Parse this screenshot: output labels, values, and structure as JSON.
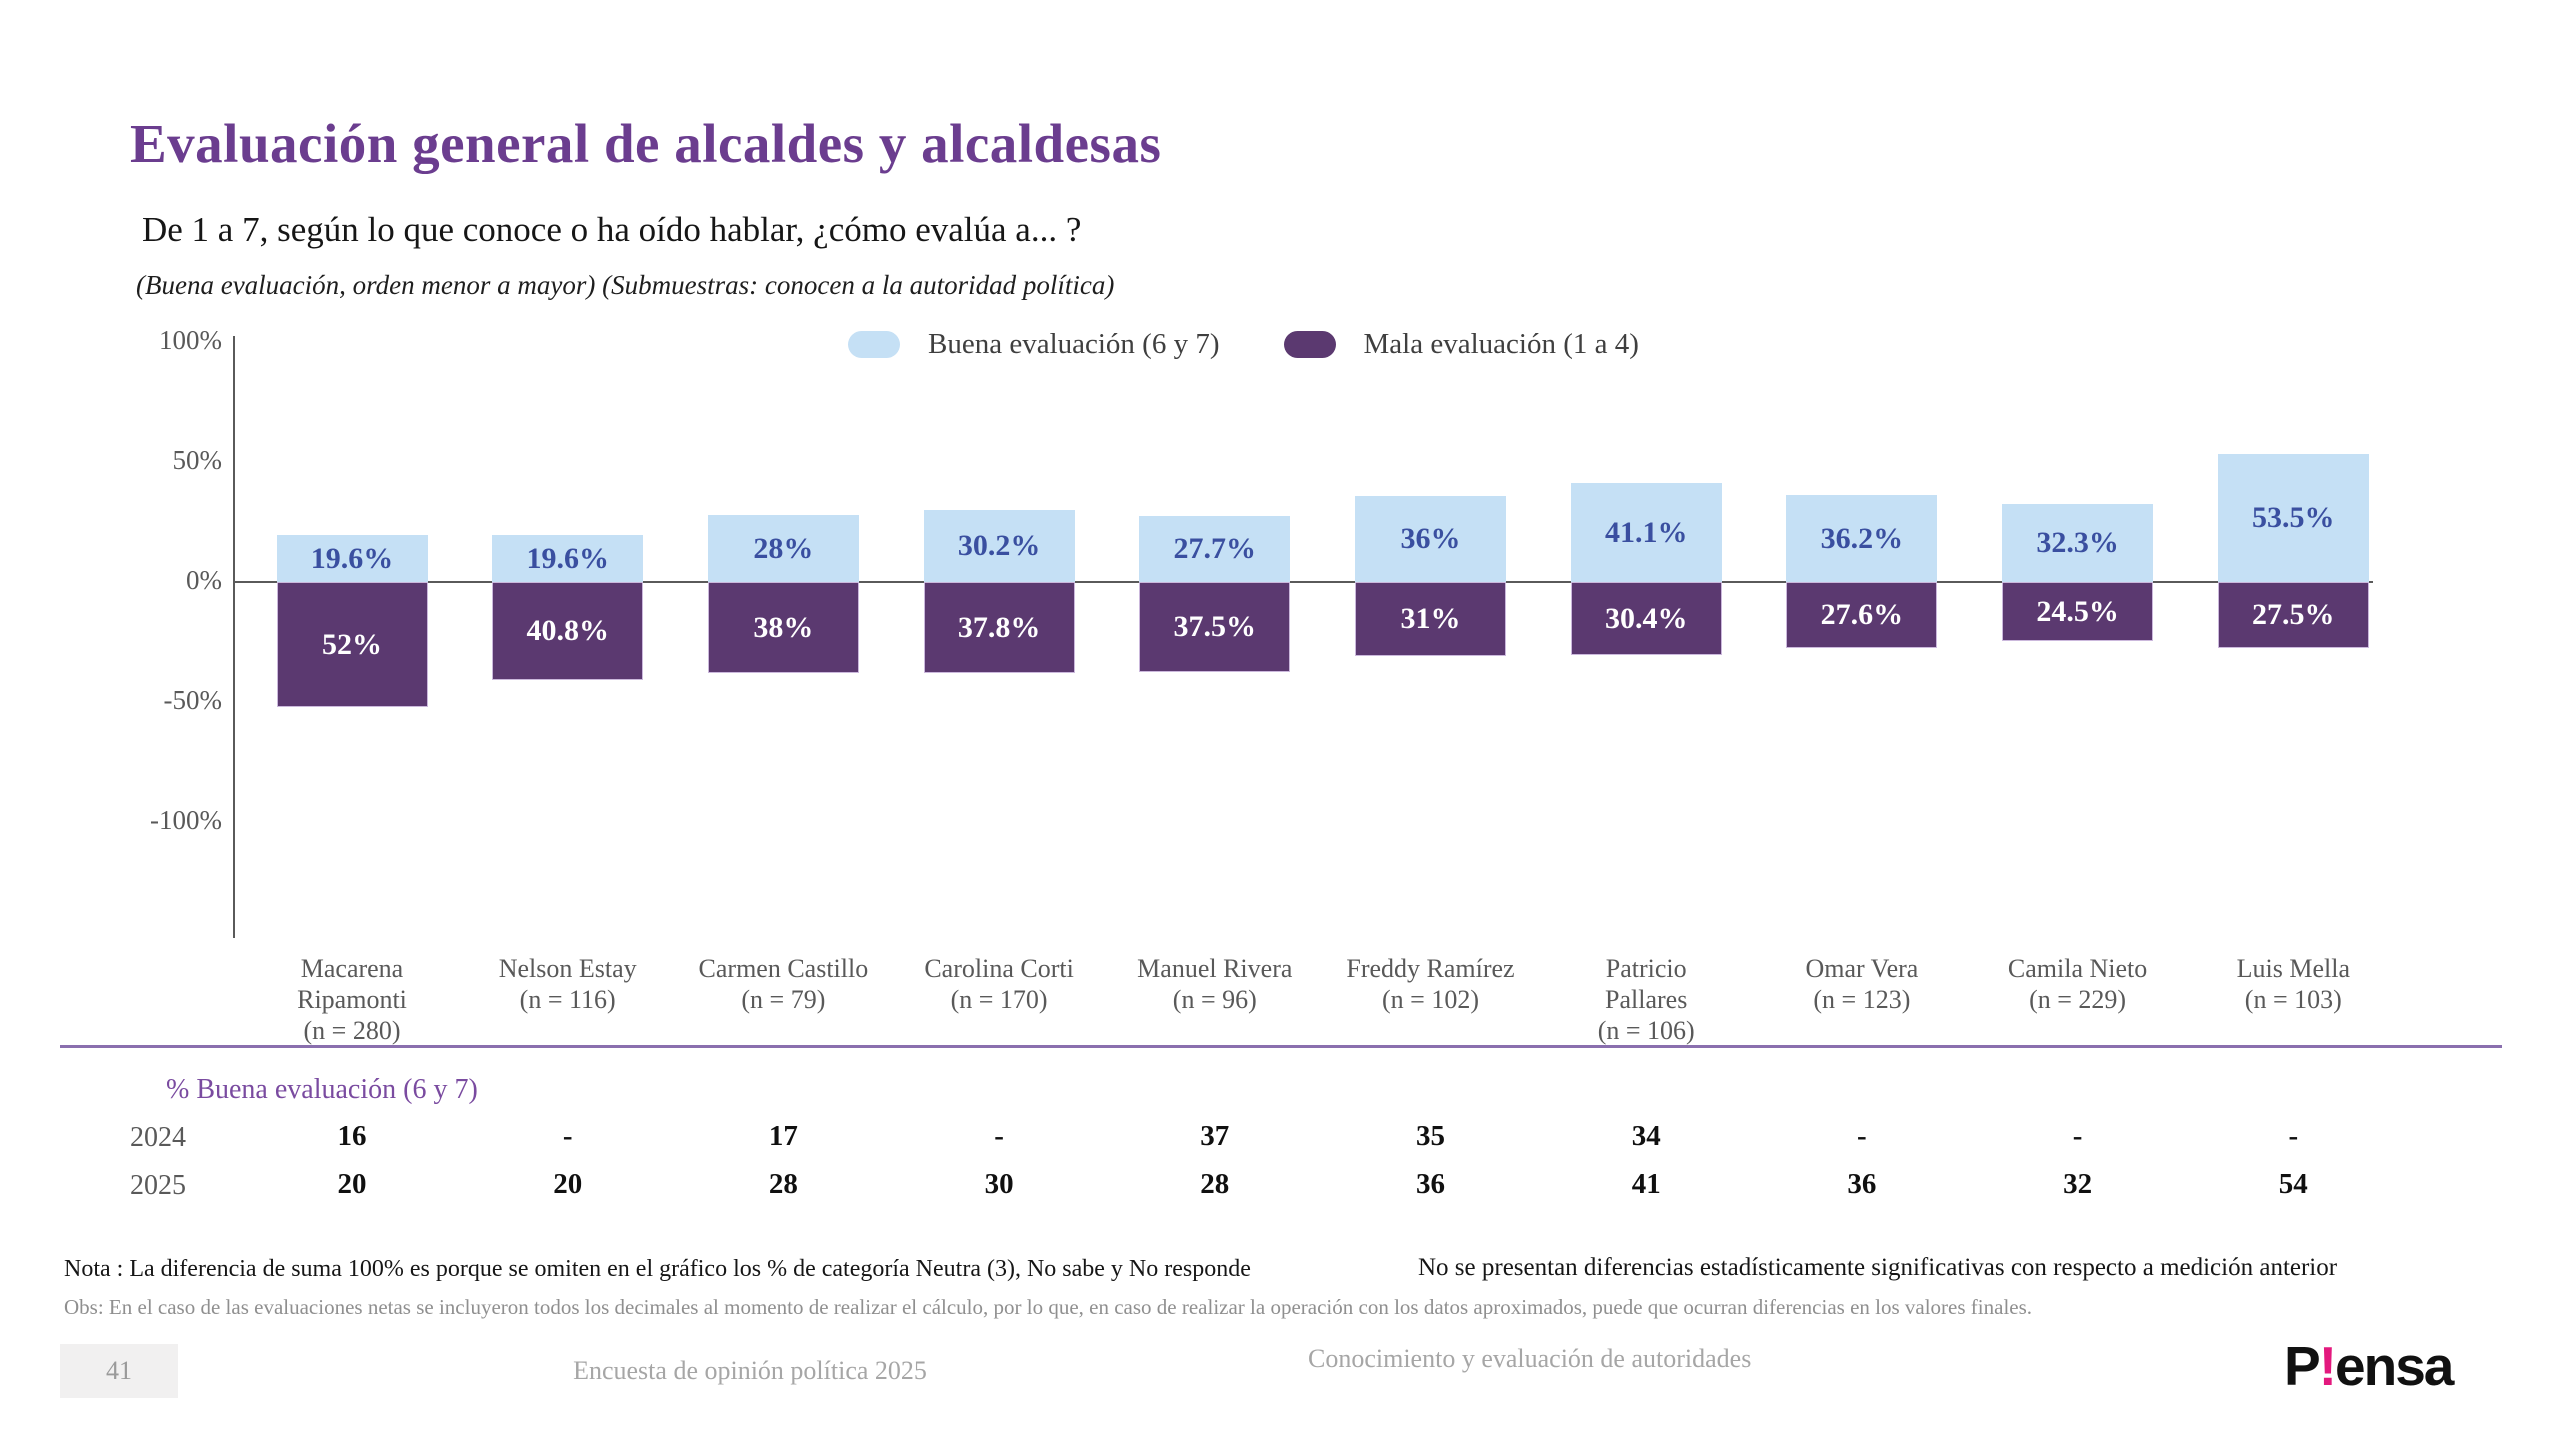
{
  "slide": {
    "title": "Evaluación general de alcaldes y alcaldesas",
    "question": "De 1 a 7, según lo que conoce o ha oído hablar, ¿cómo evalúa a... ?",
    "subnote": "(Buena evaluación, orden menor a mayor) (Submuestras: conocen a la autoridad política)"
  },
  "colors": {
    "good_bar": "#C5E0F5",
    "bad_bar": "#5B3970",
    "good_label_text": "#3A4FA0",
    "title_purple": "#6B3D8F",
    "separator_purple": "#8A6FAE",
    "logo_pink": "#E3197E"
  },
  "chart_data": {
    "type": "bar",
    "subtype": "diverging-stacked",
    "title": "Evaluación general de alcaldes y alcaldesas",
    "xlabel": "",
    "ylabel": "",
    "ylim": [
      -100,
      100
    ],
    "grid": false,
    "legend_position": "top-center",
    "y_ticks": [
      {
        "label": "100%",
        "value": 100
      },
      {
        "label": "50%",
        "value": 50
      },
      {
        "label": "0%",
        "value": 0
      },
      {
        "label": "-50%",
        "value": -50
      },
      {
        "label": "-100%",
        "value": -100
      }
    ],
    "legend": [
      {
        "label": "Buena evaluación (6 y 7)",
        "color": "#C5E0F5"
      },
      {
        "label": "Mala evaluación (1 a 4)",
        "color": "#5B3970"
      }
    ],
    "categories": [
      {
        "lines": [
          "Macarena",
          "Ripamonti"
        ],
        "n": "(n = 280)"
      },
      {
        "lines": [
          "Nelson Estay"
        ],
        "n": "(n = 116)"
      },
      {
        "lines": [
          "Carmen Castillo"
        ],
        "n": "(n = 79)"
      },
      {
        "lines": [
          "Carolina Corti"
        ],
        "n": "(n = 170)"
      },
      {
        "lines": [
          "Manuel Rivera"
        ],
        "n": "(n = 96)"
      },
      {
        "lines": [
          "Freddy Ramírez"
        ],
        "n": "(n = 102)"
      },
      {
        "lines": [
          "Patricio",
          "Pallares"
        ],
        "n": "(n = 106)"
      },
      {
        "lines": [
          "Omar Vera"
        ],
        "n": "(n = 123)"
      },
      {
        "lines": [
          "Camila Nieto"
        ],
        "n": "(n = 229)"
      },
      {
        "lines": [
          "Luis Mella"
        ],
        "n": "(n = 103)"
      }
    ],
    "series": [
      {
        "name": "Buena evaluación (6 y 7)",
        "direction": "positive",
        "color": "#C5E0F5",
        "values": [
          19.6,
          19.6,
          28,
          30.2,
          27.7,
          36,
          41.1,
          36.2,
          32.3,
          53.5
        ],
        "labels": [
          "19.6%",
          "19.6%",
          "28%",
          "30.2%",
          "27.7%",
          "36%",
          "41.1%",
          "36.2%",
          "32.3%",
          "53.5%"
        ]
      },
      {
        "name": "Mala evaluación (1 a 4)",
        "direction": "negative",
        "color": "#5B3970",
        "values": [
          52,
          40.8,
          38,
          37.8,
          37.5,
          31,
          30.4,
          27.6,
          24.5,
          27.5
        ],
        "labels": [
          "52%",
          "40.8%",
          "38%",
          "37.8%",
          "37.5%",
          "31%",
          "30.4%",
          "27.6%",
          "24.5%",
          "27.5%"
        ]
      }
    ]
  },
  "table": {
    "header": "% Buena evaluación (6 y 7)",
    "rows": [
      {
        "year": "2024",
        "values": [
          "16",
          "-",
          "17",
          "-",
          "37",
          "35",
          "34",
          "-",
          "-",
          "-"
        ]
      },
      {
        "year": "2025",
        "values": [
          "20",
          "20",
          "28",
          "30",
          "28",
          "36",
          "41",
          "36",
          "32",
          "54"
        ]
      }
    ]
  },
  "notes": {
    "left": "Nota : La diferencia de suma 100% es porque se omiten en el gráfico los % de categoría Neutra (3), No sabe y No responde",
    "right": "No se presentan diferencias estadísticamente significativas con respecto a medición anterior",
    "obs": "Obs: En el caso de las evaluaciones netas se incluyeron todos los decimales al momento de realizar el cálculo, por lo que, en caso de realizar la operación con los datos aproximados, puede que ocurran diferencias en los valores finales."
  },
  "footer": {
    "page_number": "41",
    "center_text": "Encuesta de opinión política 2025",
    "section_text": "Conocimiento y evaluación de autoridades",
    "logo": {
      "first": "P",
      "bang": "!",
      "rest": "ensa"
    }
  }
}
